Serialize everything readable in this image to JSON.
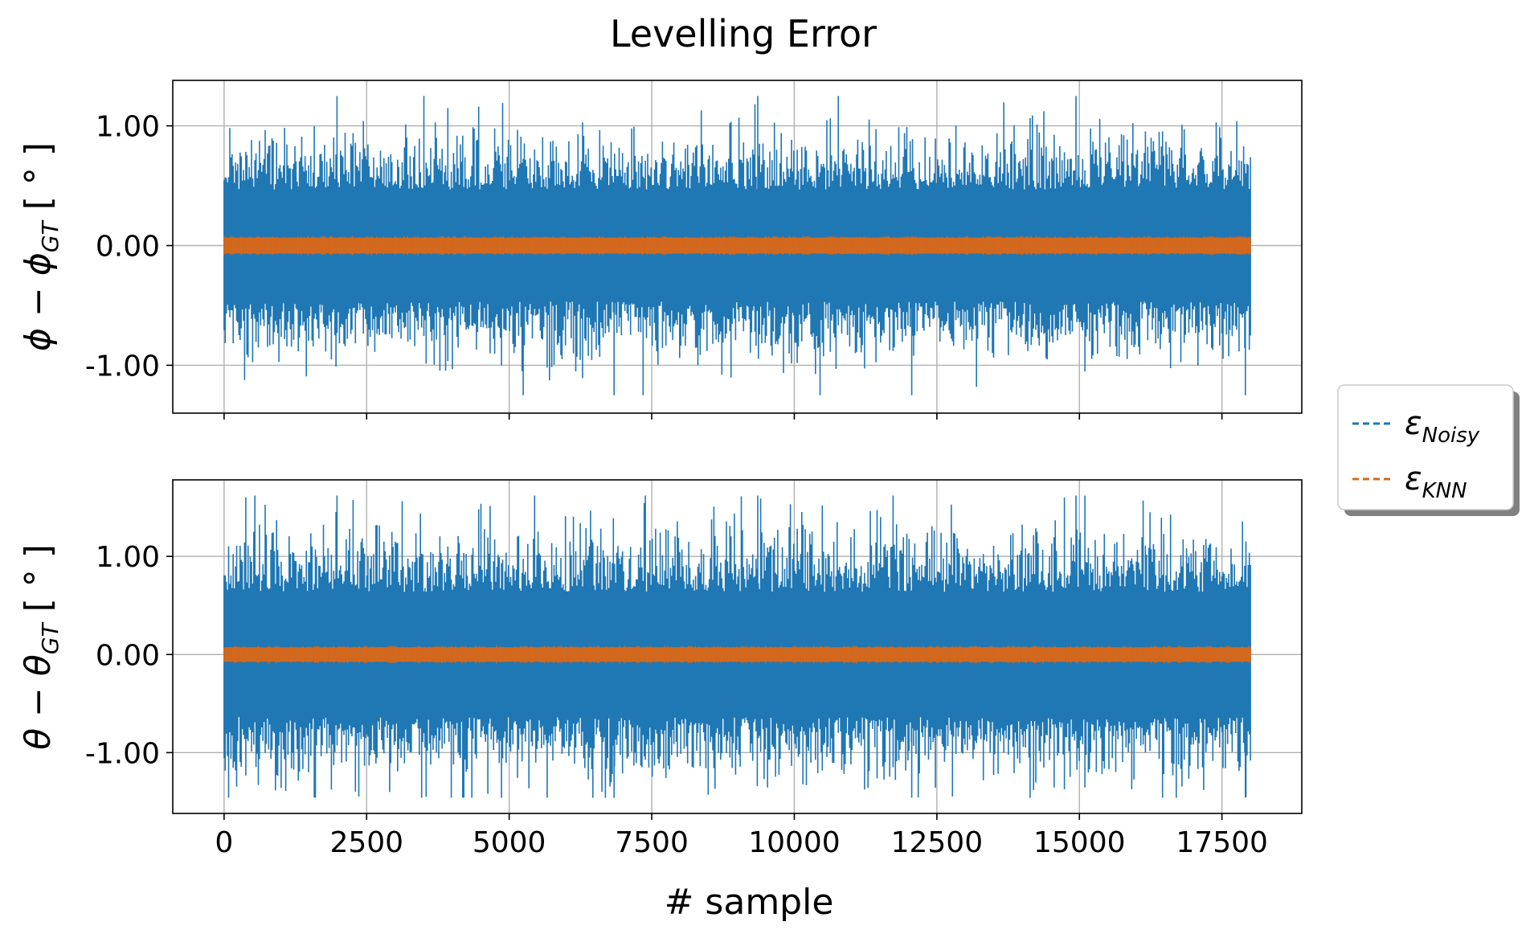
{
  "colors": {
    "noisy": "#1f77b4",
    "knn": "#d2691e",
    "grid": "#b0b0b0"
  },
  "chart_data": {
    "type": "line",
    "title": "Levelling Error",
    "xlabel": "# sample",
    "x_ticks": [
      0,
      2500,
      5000,
      7500,
      10000,
      12500,
      15000,
      17500
    ],
    "x_tick_labels": [
      "0",
      "2500",
      "5000",
      "7500",
      "10000",
      "12500",
      "15000",
      "17500"
    ],
    "x_range": [
      0,
      18000
    ],
    "xlim": [
      -900,
      18900
    ],
    "grid": true,
    "legend": {
      "placement": "right",
      "entries": [
        {
          "symbol": "ε",
          "subscript": "Noisy",
          "color": "#1f77b4",
          "style": "dashed"
        },
        {
          "symbol": "ε",
          "subscript": "KNN",
          "color": "#d2691e",
          "style": "dashed"
        }
      ]
    },
    "subplots": [
      {
        "ylabel_main": "ϕ − ϕ",
        "ylabel_sub": "GT",
        "ylabel_unit": " [ ° ]",
        "ylim": [
          -1.4,
          1.38
        ],
        "y_ticks": [
          -1.0,
          0.0,
          1.0
        ],
        "y_tick_labels": [
          "-1.00",
          "0.00",
          "1.00"
        ],
        "series": [
          {
            "name": "ε Noisy",
            "typical_band": [
              -0.55,
              0.55
            ],
            "peak_max": 1.25,
            "peak_min": -1.25
          },
          {
            "name": "ε KNN",
            "typical_band": [
              -0.08,
              0.08
            ]
          }
        ]
      },
      {
        "ylabel_main": "θ − θ",
        "ylabel_sub": "GT",
        "ylabel_unit": " [ ° ]",
        "ylim": [
          -1.62,
          1.78
        ],
        "y_ticks": [
          -1.0,
          0.0,
          1.0
        ],
        "y_tick_labels": [
          "-1.00",
          "0.00",
          "1.00"
        ],
        "series": [
          {
            "name": "ε Noisy",
            "typical_band": [
              -0.75,
              0.75
            ],
            "peak_max": 1.62,
            "peak_min": -1.46
          },
          {
            "name": "ε KNN",
            "typical_band": [
              -0.09,
              0.09
            ]
          }
        ]
      }
    ]
  }
}
